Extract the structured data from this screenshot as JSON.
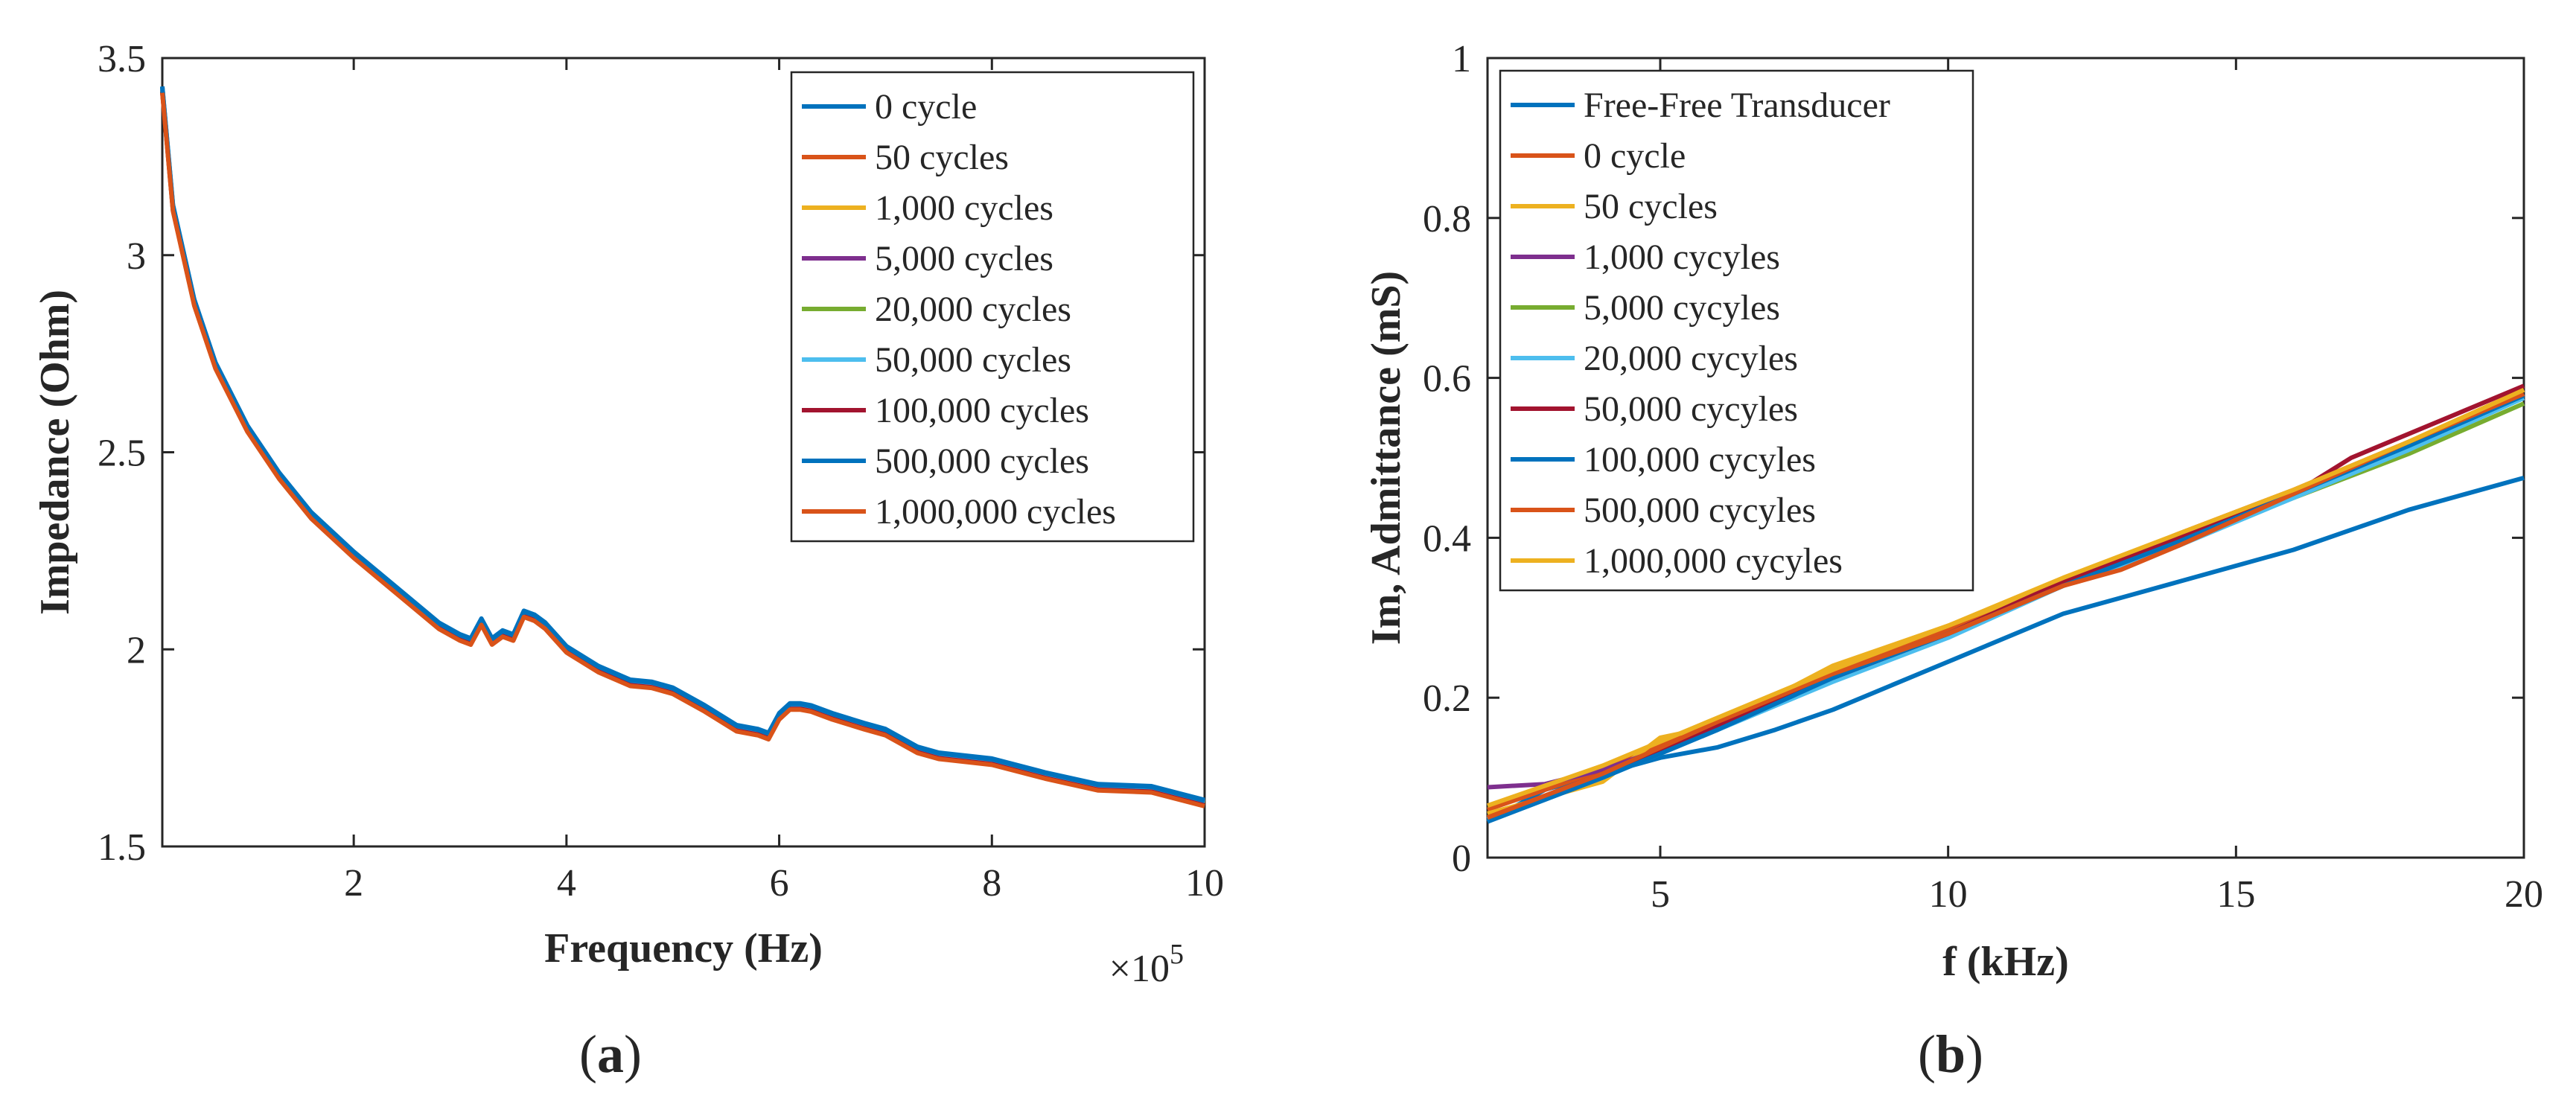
{
  "figure": {
    "panel_a_label": "(a)",
    "panel_a_letter": "a",
    "panel_b_label": "(b)",
    "panel_b_letter": "b"
  },
  "chart_data": [
    {
      "type": "line",
      "panel": "a",
      "title": "",
      "xlabel": "Frequency (Hz)",
      "ylabel": "Impedance (Ohm)",
      "x_multiplier_label": "×10",
      "x_multiplier_exponent": "5",
      "xlim": [
        0.2,
        10
      ],
      "ylim": [
        1.5,
        3.5
      ],
      "xticks": [
        2,
        4,
        6,
        8,
        10
      ],
      "yticks": [
        1.5,
        2,
        2.5,
        3,
        3.5
      ],
      "xtick_labels": [
        "2",
        "4",
        "6",
        "8",
        "10"
      ],
      "ytick_labels": [
        "1.5",
        "2",
        "2.5",
        "3",
        "3.5"
      ],
      "grid": false,
      "legend_position": "top-right",
      "x_units_note": "x in units of 1e5 Hz",
      "base_curve": {
        "x": [
          0.2,
          0.3,
          0.5,
          0.7,
          1.0,
          1.3,
          1.6,
          2.0,
          2.4,
          2.8,
          3.0,
          3.1,
          3.2,
          3.3,
          3.4,
          3.5,
          3.6,
          3.7,
          3.8,
          4.0,
          4.3,
          4.6,
          4.8,
          5.0,
          5.3,
          5.6,
          5.8,
          5.9,
          6.0,
          6.1,
          6.2,
          6.3,
          6.5,
          6.8,
          7.0,
          7.3,
          7.5,
          8.0,
          8.5,
          9.0,
          9.5,
          10.0
        ],
        "y": [
          3.42,
          3.12,
          2.88,
          2.72,
          2.56,
          2.44,
          2.34,
          2.24,
          2.15,
          2.06,
          2.03,
          2.02,
          2.07,
          2.02,
          2.04,
          2.03,
          2.09,
          2.08,
          2.06,
          2.0,
          1.95,
          1.915,
          1.91,
          1.895,
          1.85,
          1.8,
          1.79,
          1.78,
          1.83,
          1.855,
          1.855,
          1.85,
          1.83,
          1.805,
          1.79,
          1.745,
          1.73,
          1.715,
          1.68,
          1.65,
          1.645,
          1.61
        ]
      },
      "series": [
        {
          "name": "0 cycle",
          "color": "#0072BD",
          "offset": 0.008
        },
        {
          "name": "50 cycles",
          "color": "#D95319",
          "offset": -0.004
        },
        {
          "name": "1,000 cycles",
          "color": "#EDB120",
          "offset": 0.004
        },
        {
          "name": "5,000 cycles",
          "color": "#7E2F8E",
          "offset": 0.0
        },
        {
          "name": "20,000 cycles",
          "color": "#77AC30",
          "offset": -0.002
        },
        {
          "name": "50,000 cycles",
          "color": "#4DBEEE",
          "offset": 0.002
        },
        {
          "name": "100,000 cycles",
          "color": "#A2142F",
          "offset": -0.006
        },
        {
          "name": "500,000 cycles",
          "color": "#0072BD",
          "offset": 0.006
        },
        {
          "name": "1,000,000 cycles",
          "color": "#D95319",
          "offset": -0.008
        }
      ]
    },
    {
      "type": "line",
      "panel": "b",
      "title": "",
      "xlabel": "f (kHz)",
      "ylabel": "Im, Admittance (mS)",
      "xlim": [
        2,
        20
      ],
      "ylim": [
        0,
        1
      ],
      "xticks": [
        5,
        10,
        15,
        20
      ],
      "yticks": [
        0,
        0.2,
        0.4,
        0.6,
        0.8,
        1
      ],
      "xtick_labels": [
        "5",
        "10",
        "15",
        "20"
      ],
      "ytick_labels": [
        "0",
        "0.2",
        "0.4",
        "0.6",
        "0.8",
        "1"
      ],
      "grid": false,
      "legend_position": "top-left",
      "series": [
        {
          "name": "Free-Free Transducer",
          "color": "#0072BD",
          "x": [
            2,
            3,
            4,
            5,
            6,
            7,
            8,
            9,
            10,
            11,
            12,
            13,
            14,
            15,
            16,
            17,
            18,
            19,
            20
          ],
          "y": [
            0.045,
            0.085,
            0.105,
            0.125,
            0.138,
            0.16,
            0.185,
            0.215,
            0.245,
            0.275,
            0.305,
            0.325,
            0.345,
            0.365,
            0.385,
            0.41,
            0.435,
            0.455,
            0.475
          ]
        },
        {
          "name": "0 cycle",
          "color": "#D95319",
          "x": [
            2,
            4,
            6,
            8,
            10,
            12,
            14,
            16,
            18,
            20
          ],
          "y": [
            0.06,
            0.11,
            0.17,
            0.23,
            0.285,
            0.345,
            0.405,
            0.46,
            0.52,
            0.585
          ]
        },
        {
          "name": "50 cycles",
          "color": "#EDB120",
          "x": [
            2,
            4,
            5,
            6,
            8,
            10,
            12,
            14,
            16,
            18,
            20
          ],
          "y": [
            0.055,
            0.095,
            0.15,
            0.165,
            0.24,
            0.29,
            0.345,
            0.4,
            0.455,
            0.52,
            0.585
          ]
        },
        {
          "name": "1,000 cycyles",
          "color": "#7E2F8E",
          "x": [
            2,
            3,
            4,
            6,
            8,
            10,
            12,
            14,
            16,
            18,
            20
          ],
          "y": [
            0.088,
            0.092,
            0.11,
            0.16,
            0.23,
            0.28,
            0.345,
            0.395,
            0.455,
            0.515,
            0.58
          ]
        },
        {
          "name": "5,000 cycyles",
          "color": "#77AC30",
          "x": [
            2,
            4,
            6,
            8,
            10,
            12,
            14,
            16,
            18,
            20
          ],
          "y": [
            0.05,
            0.1,
            0.165,
            0.225,
            0.28,
            0.34,
            0.395,
            0.45,
            0.505,
            0.568
          ]
        },
        {
          "name": "20,000 cycyles",
          "color": "#4DBEEE",
          "x": [
            2,
            4,
            6,
            8,
            10,
            12,
            14,
            16,
            18,
            20
          ],
          "y": [
            0.048,
            0.1,
            0.16,
            0.22,
            0.275,
            0.34,
            0.39,
            0.45,
            0.51,
            0.575
          ]
        },
        {
          "name": "50,000 cycyles",
          "color": "#A2142F",
          "x": [
            2,
            4,
            6,
            8,
            10,
            12,
            14,
            16,
            17,
            18,
            20
          ],
          "y": [
            0.05,
            0.105,
            0.165,
            0.225,
            0.28,
            0.345,
            0.4,
            0.455,
            0.5,
            0.53,
            0.59
          ]
        },
        {
          "name": "100,000 cycyles",
          "color": "#0072BD",
          "x": [
            2,
            4,
            6,
            8,
            10,
            12,
            14,
            16,
            18,
            20
          ],
          "y": [
            0.045,
            0.1,
            0.16,
            0.225,
            0.28,
            0.34,
            0.395,
            0.455,
            0.515,
            0.578
          ]
        },
        {
          "name": "500,000 cycyles",
          "color": "#D95319",
          "x": [
            2,
            4,
            6,
            8,
            10,
            12,
            13,
            14,
            16,
            18,
            20
          ],
          "y": [
            0.05,
            0.105,
            0.17,
            0.23,
            0.28,
            0.34,
            0.36,
            0.39,
            0.455,
            0.52,
            0.58
          ]
        },
        {
          "name": "1,000,000 cycyles",
          "color": "#EDB120",
          "x": [
            2,
            4,
            6,
            8,
            10,
            12,
            14,
            16,
            18,
            20
          ],
          "y": [
            0.065,
            0.115,
            0.175,
            0.235,
            0.29,
            0.35,
            0.405,
            0.46,
            0.52,
            0.585
          ]
        }
      ]
    }
  ]
}
